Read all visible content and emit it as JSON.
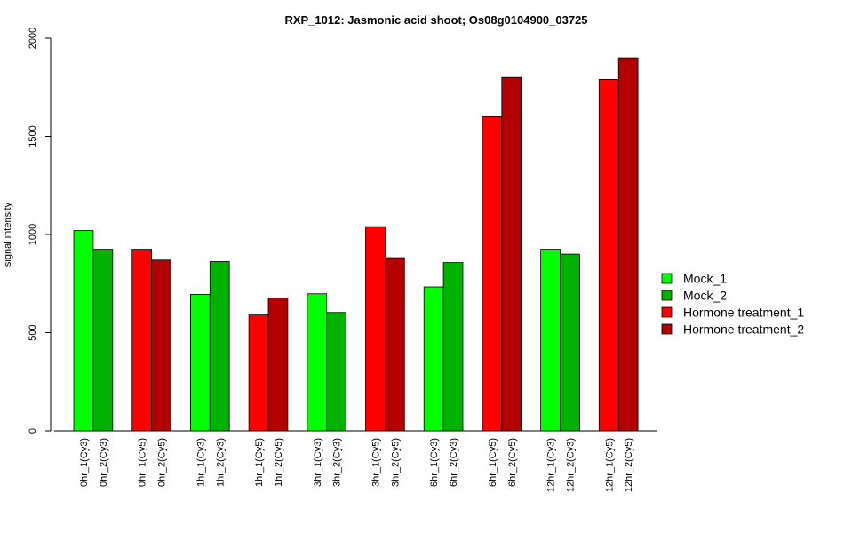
{
  "chart_data": {
    "type": "bar",
    "title": "RXP_1012: Jasmonic acid shoot; Os08g0104900_03725",
    "xlabel": "",
    "ylabel": "signal intensity",
    "ylim": [
      0,
      2000
    ],
    "yticks": [
      0,
      500,
      1000,
      1500,
      2000
    ],
    "grid": false,
    "legend_position": "right",
    "categories": [
      "0hr_1(Cy3)",
      "0hr_2(Cy3)",
      "0hr_1(Cy5)",
      "0hr_2(Cy5)",
      "1hr_1(Cy3)",
      "1hr_2(Cy3)",
      "1hr_1(Cy5)",
      "1hr_2(Cy5)",
      "3hr_1(Cy3)",
      "3hr_2(Cy3)",
      "3hr_1(Cy5)",
      "3hr_2(Cy5)",
      "6hr_1(Cy3)",
      "6hr_2(Cy3)",
      "6hr_1(Cy5)",
      "6hr_2(Cy5)",
      "12hr_1(Cy3)",
      "12hr_2(Cy3)",
      "12hr_1(Cy5)",
      "12hr_2(Cy5)"
    ],
    "values": [
      1020,
      925,
      925,
      870,
      695,
      862,
      590,
      677,
      698,
      603,
      1040,
      882,
      733,
      857,
      1600,
      1800,
      925,
      900,
      1790,
      1900
    ],
    "bar_series": [
      "Mock_1",
      "Mock_2",
      "Hormone treatment_1",
      "Hormone treatment_2",
      "Mock_1",
      "Mock_2",
      "Hormone treatment_1",
      "Hormone treatment_2",
      "Mock_1",
      "Mock_2",
      "Hormone treatment_1",
      "Hormone treatment_2",
      "Mock_1",
      "Mock_2",
      "Hormone treatment_1",
      "Hormone treatment_2",
      "Mock_1",
      "Mock_2",
      "Hormone treatment_1",
      "Hormone treatment_2"
    ],
    "legend": [
      {
        "name": "Mock_1",
        "color": "#00ff00"
      },
      {
        "name": "Mock_2",
        "color": "#00b300"
      },
      {
        "name": "Hormone treatment_1",
        "color": "#ff0000"
      },
      {
        "name": "Hormone treatment_2",
        "color": "#b30000"
      }
    ]
  }
}
